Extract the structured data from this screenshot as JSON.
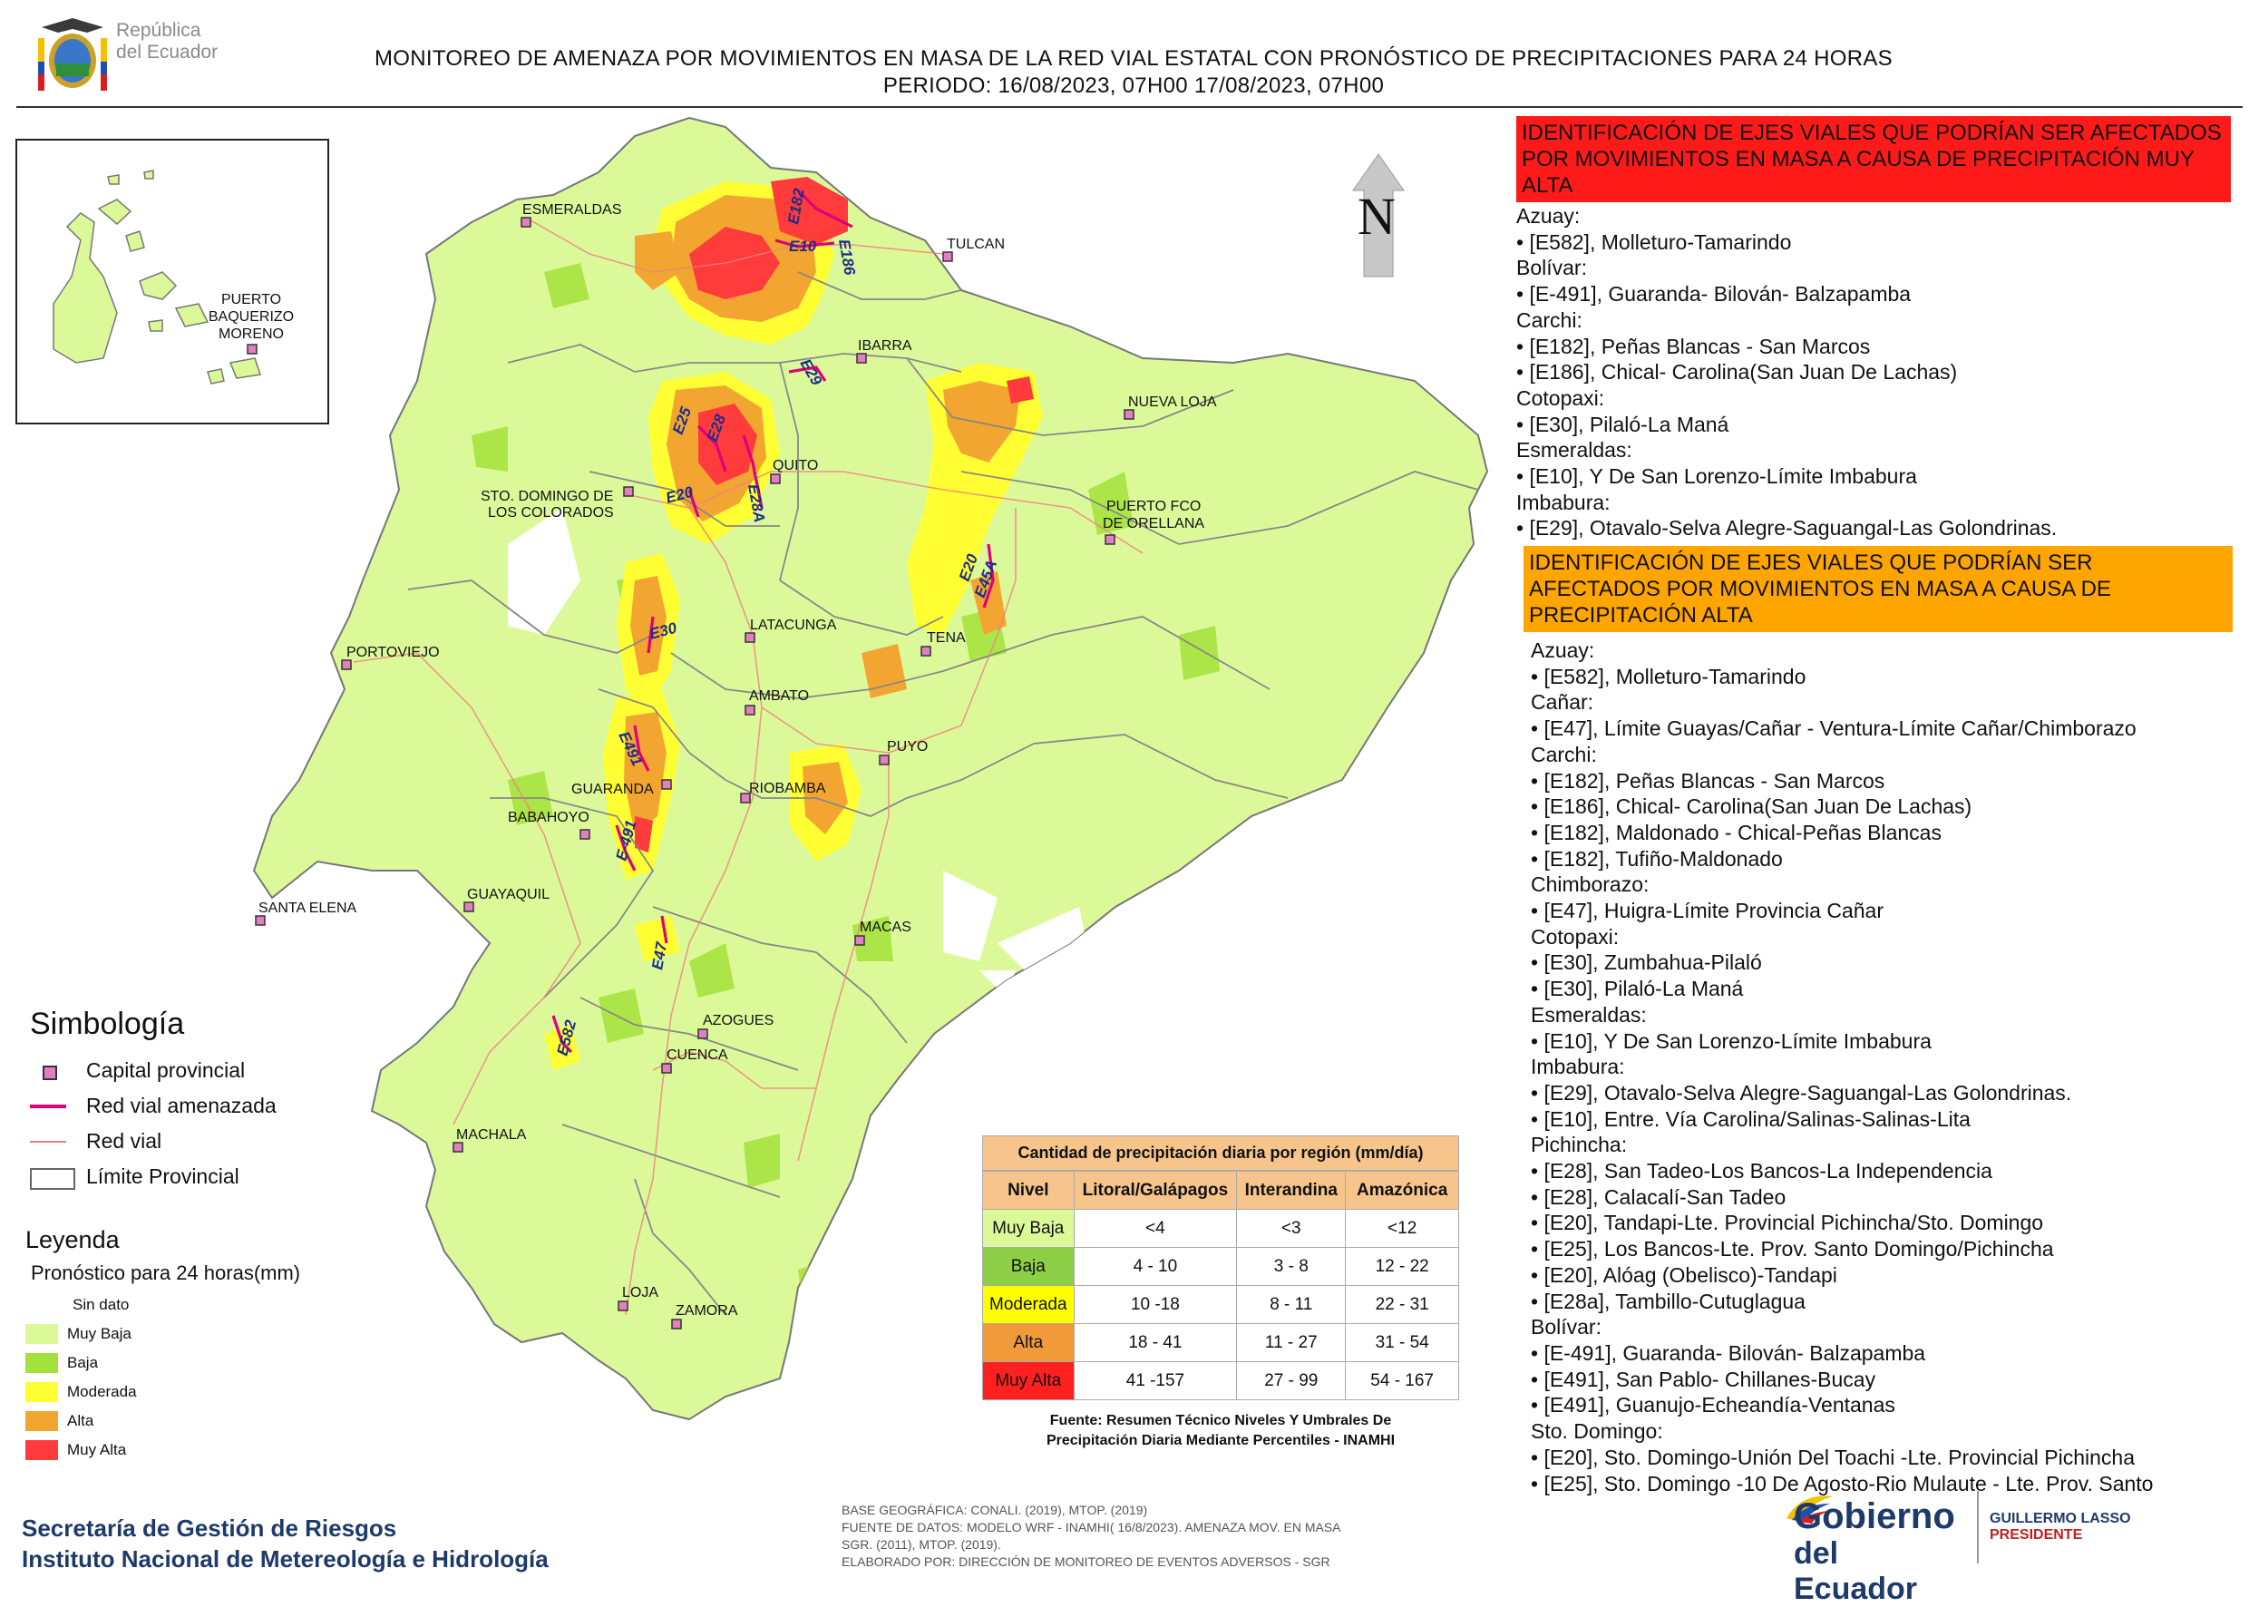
{
  "header": {
    "logo_text_line1": "República",
    "logo_text_line2": "del Ecuador",
    "title_line1": "MONITOREO DE AMENAZA POR MOVIMIENTOS EN MASA DE LA RED VIAL  ESTATAL  CON PRONÓSTICO  DE  PRECIPITACIONES PARA 24 HORAS",
    "title_line2": "PERIODO: 16/08/2023, 07H00 17/08/2023, 07H00"
  },
  "north_label": "N",
  "inset": {
    "label_line1": "PUERTO",
    "label_line2": "BAQUERIZO",
    "label_line3": "MORENO"
  },
  "cities": [
    "ESMERALDAS",
    "TULCAN",
    "IBARRA",
    "NUEVA LOJA",
    "QUITO",
    "STO. DOMINGO DE",
    "LOS COLORADOS",
    "PUERTO FCO",
    "DE ORELLANA",
    "LATACUNGA",
    "TENA",
    "PORTOVIEJO",
    "AMBATO",
    "PUYO",
    "GUARANDA",
    "RIOBAMBA",
    "BABAHOYO",
    "GUAYAQUIL",
    "SANTA ELENA",
    "MACAS",
    "AZOGUES",
    "CUENCA",
    "MACHALA",
    "LOJA",
    "ZAMORA"
  ],
  "road_labels": [
    "E182",
    "E186",
    "E10",
    "E29",
    "E25",
    "E28",
    "E20",
    "E28A",
    "E20",
    "E45A",
    "E30",
    "E491",
    "E-491",
    "E47",
    "E582"
  ],
  "colors": {
    "muy_baja": "#dcf99a",
    "baja": "#a3e23a",
    "moderada": "#ffff33",
    "alta": "#f3a531",
    "muy_alta": "#ff3b3b",
    "threatened_road": "#e0007a",
    "road": "#f08080",
    "panel_very_high": "#ff1a1a",
    "panel_high": "#ffa500"
  },
  "panel_very_high": {
    "heading": "IDENTIFICACIÓN DE EJES VIALES QUE PODRÍAN SER AFECTADOS POR MOVIMIENTOS EN MASA A CAUSA DE PRECIPITACIÓN MUY ALTA",
    "lines": [
      "Azuay:",
      "• [E582], Molleturo-Tamarindo",
      "Bolívar:",
      "• [E-491], Guaranda- Bilován- Balzapamba",
      "Carchi:",
      "• [E182], Peñas Blancas - San Marcos",
      "• [E186], Chical- Carolina(San Juan De Lachas)",
      "Cotopaxi:",
      "• [E30], Pilaló-La Maná",
      "Esmeraldas:",
      "• [E10], Y De San Lorenzo-Límite Imbabura",
      "Imbabura:",
      "• [E29], Otavalo-Selva Alegre-Saguangal-Las Golondrinas."
    ]
  },
  "panel_high": {
    "heading": "IDENTIFICACIÓN DE EJES VIALES QUE PODRÍAN SER AFECTADOS POR MOVIMIENTOS EN MASA A CAUSA DE PRECIPITACIÓN  ALTA",
    "lines": [
      "Azuay:",
      "• [E582], Molleturo-Tamarindo",
      "Cañar:",
      "• [E47], Límite Guayas/Cañar - Ventura-Límite Cañar/Chimborazo",
      "Carchi:",
      "• [E182], Peñas Blancas - San Marcos",
      "• [E186], Chical- Carolina(San Juan De Lachas)",
      "• [E182], Maldonado - Chical-Peñas Blancas",
      "• [E182], Tufiño-Maldonado",
      "Chimborazo:",
      "• [E47], Huigra-Límite Provincia Cañar",
      "Cotopaxi:",
      "• [E30], Zumbahua-Pilaló",
      "• [E30], Pilaló-La Maná",
      "Esmeraldas:",
      "• [E10], Y De San Lorenzo-Límite Imbabura",
      "Imbabura:",
      "• [E29], Otavalo-Selva Alegre-Saguangal-Las Golondrinas.",
      "• [E10], Entre. Vía Carolina/Salinas-Salinas-Lita",
      "Pichincha:",
      "• [E28], San Tadeo-Los Bancos-La Independencia",
      "• [E28], Calacalí-San Tadeo",
      "• [E20], Tandapi-Lte. Provincial Pichincha/Sto. Domingo",
      "• [E25], Los Bancos-Lte. Prov. Santo Domingo/Pichincha",
      "• [E20], Alóag (Obelisco)-Tandapi",
      "• [E28a], Tambillo-Cutuglagua",
      "Bolívar:",
      "• [E-491], Guaranda- Bilován- Balzapamba",
      "• [E491], San Pablo- Chillanes-Bucay",
      "• [E491], Guanujo-Echeandía-Ventanas",
      "Sto. Domingo:",
      "• [E20], Sto. Domingo-Unión Del Toachi -Lte. Provincial Pichincha",
      "• [E25], Sto. Domingo -10 De Agosto-Rio Mulaute - Lte. Prov. Santo"
    ]
  },
  "legend": {
    "title": "Simbología",
    "items": [
      "Capital provincial",
      "Red vial amenazada",
      "Red vial",
      "Límite Provincial"
    ],
    "leyenda_title": "Leyenda",
    "forecast_title": "Pronóstico para 24 horas(mm)",
    "categories": [
      "Sin dato",
      "Muy Baja",
      "Baja",
      "Moderada",
      "Alta",
      "Muy Alta"
    ]
  },
  "precip_table": {
    "title": "Cantidad de precipitación diaria por región (mm/día)",
    "headers": [
      "Nivel",
      "Litoral/Galápagos",
      "Interandina",
      "Amazónica"
    ],
    "rows": [
      [
        "Muy Baja",
        "<4",
        "<3",
        "<12"
      ],
      [
        "Baja",
        "4 - 10",
        "3 - 8",
        "12 - 22"
      ],
      [
        "Moderada",
        "10 -18",
        "8 - 11",
        "22 - 31"
      ],
      [
        "Alta",
        "18 - 41",
        "11 - 27",
        "31 - 54"
      ],
      [
        "Muy Alta",
        "41 -157",
        "27 - 99",
        "54 - 167"
      ]
    ],
    "source_line1": "Fuente: Resumen Técnico Niveles Y Umbrales De",
    "source_line2": "Precipitación Diaria Mediante Percentiles - INAMHI"
  },
  "footer": {
    "org_line1": "Secretaría de Gestión de Riesgos",
    "org_line2": "Instituto Nacional de Metereología e Hidrología",
    "credit_line1": "BASE GEOGRÁFICA: CONALI. (2019), MTOP. (2019)",
    "credit_line2": "FUENTE DE DATOS: MODELO WRF - INAMHI( 16/8/2023).  AMENAZA MOV. EN MASA",
    "credit_line3": "SGR. (2011), MTOP. (2019).",
    "credit_line4": "ELABORADO POR: DIRECCIÓN DE MONITOREO DE EVENTOS ADVERSOS - SGR",
    "gov_line1": "Gobierno",
    "gov_line2": "del Ecuador",
    "president_line1": "GUILLERMO LASSO",
    "president_line2": "PRESIDENTE"
  }
}
